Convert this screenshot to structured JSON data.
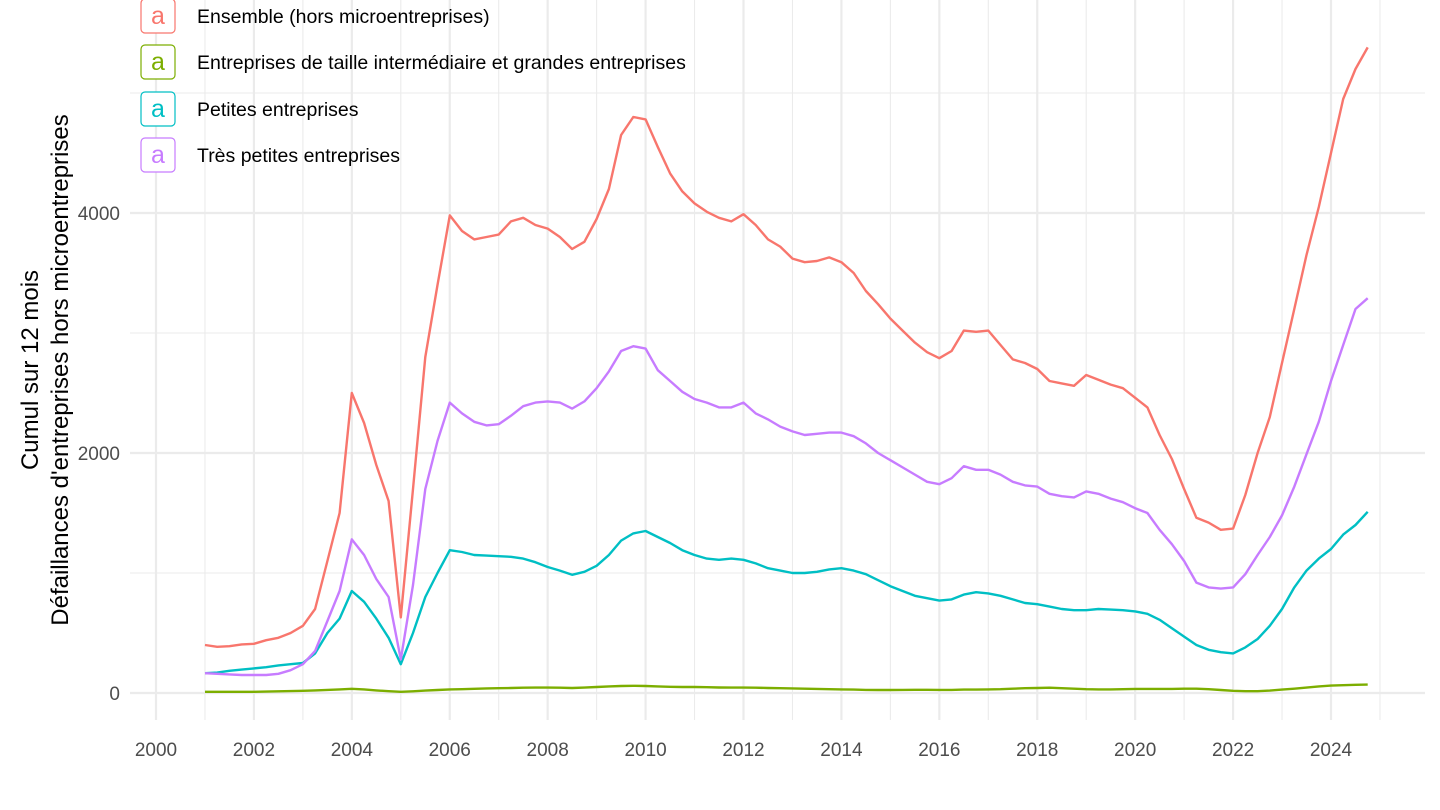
{
  "chart_data": {
    "type": "line",
    "title": "",
    "xlabel": "",
    "ylabel_lines": [
      "Cumul sur 12 mois",
      "Défaillances d'entreprises hors microentreprises"
    ],
    "xlim": [
      1999.8,
      2025.5
    ],
    "ylim": [
      -200,
      5600
    ],
    "x_ticks": [
      2000,
      2002,
      2004,
      2006,
      2008,
      2010,
      2012,
      2014,
      2016,
      2018,
      2020,
      2022,
      2024
    ],
    "x_tick_labels": [
      "2000",
      "2002",
      "2004",
      "2006",
      "2008",
      "2010",
      "2012",
      "2014",
      "2016",
      "2018",
      "2020",
      "2022",
      "2024"
    ],
    "y_ticks": [
      0,
      2000,
      4000
    ],
    "y_tick_labels": [
      "0",
      "2000",
      "4000"
    ],
    "y_minor_ticks": [
      1000,
      3000,
      5000
    ],
    "grid": true,
    "legend_position": "top-left",
    "legend_key_glyph": "a",
    "x": [
      2001.0,
      2001.25,
      2001.5,
      2001.75,
      2002.0,
      2002.25,
      2002.5,
      2002.75,
      2003.0,
      2003.25,
      2003.5,
      2003.75,
      2004.0,
      2004.25,
      2004.5,
      2004.75,
      2005.0,
      2005.25,
      2005.5,
      2005.75,
      2006.0,
      2006.25,
      2006.5,
      2006.75,
      2007.0,
      2007.25,
      2007.5,
      2007.75,
      2008.0,
      2008.25,
      2008.5,
      2008.75,
      2009.0,
      2009.25,
      2009.5,
      2009.75,
      2010.0,
      2010.25,
      2010.5,
      2010.75,
      2011.0,
      2011.25,
      2011.5,
      2011.75,
      2012.0,
      2012.25,
      2012.5,
      2012.75,
      2013.0,
      2013.25,
      2013.5,
      2013.75,
      2014.0,
      2014.25,
      2014.5,
      2014.75,
      2015.0,
      2015.25,
      2015.5,
      2015.75,
      2016.0,
      2016.25,
      2016.5,
      2016.75,
      2017.0,
      2017.25,
      2017.5,
      2017.75,
      2018.0,
      2018.25,
      2018.5,
      2018.75,
      2019.0,
      2019.25,
      2019.5,
      2019.75,
      2020.0,
      2020.25,
      2020.5,
      2020.75,
      2021.0,
      2021.25,
      2021.5,
      2021.75,
      2022.0,
      2022.25,
      2022.5,
      2022.75,
      2023.0,
      2023.25,
      2023.5,
      2023.75,
      2024.0,
      2024.25,
      2024.5,
      2024.75
    ],
    "series": [
      {
        "name": "Ensemble (hors microentreprises)",
        "color": "#F8766D",
        "values": [
          400,
          385,
          390,
          405,
          410,
          440,
          460,
          500,
          560,
          700,
          1100,
          1500,
          2500,
          2250,
          1900,
          1600,
          630,
          1700,
          2800,
          3400,
          3980,
          3850,
          3780,
          3800,
          3820,
          3930,
          3960,
          3900,
          3870,
          3800,
          3700,
          3760,
          3950,
          4200,
          4650,
          4800,
          4780,
          4550,
          4330,
          4180,
          4080,
          4010,
          3960,
          3930,
          3990,
          3900,
          3780,
          3720,
          3620,
          3590,
          3600,
          3630,
          3590,
          3500,
          3350,
          3240,
          3120,
          3020,
          2920,
          2840,
          2790,
          2850,
          3020,
          3010,
          3020,
          2900,
          2780,
          2750,
          2700,
          2600,
          2580,
          2560,
          2650,
          2610,
          2570,
          2540,
          2460,
          2380,
          2150,
          1950,
          1700,
          1460,
          1420,
          1360,
          1370,
          1650,
          2000,
          2300,
          2750,
          3200,
          3650,
          4050,
          4500,
          4950,
          5200,
          5380
        ]
      },
      {
        "name": "Entreprises de taille intermédiaire et grandes entreprises",
        "color": "#7CAE00",
        "values": [
          10,
          10,
          10,
          10,
          10,
          12,
          14,
          16,
          18,
          22,
          26,
          30,
          35,
          30,
          22,
          15,
          10,
          14,
          20,
          25,
          30,
          32,
          35,
          38,
          40,
          42,
          44,
          45,
          45,
          44,
          42,
          45,
          50,
          55,
          58,
          60,
          58,
          55,
          52,
          50,
          50,
          48,
          46,
          45,
          45,
          44,
          42,
          40,
          38,
          36,
          34,
          32,
          30,
          28,
          26,
          25,
          25,
          26,
          27,
          27,
          26,
          26,
          28,
          28,
          30,
          32,
          36,
          40,
          42,
          44,
          40,
          36,
          32,
          30,
          30,
          32,
          34,
          34,
          34,
          34,
          36,
          36,
          32,
          25,
          18,
          15,
          15,
          20,
          28,
          36,
          45,
          55,
          62,
          65,
          68,
          70
        ]
      },
      {
        "name": "Petites entreprises",
        "color": "#00BFC4",
        "values": [
          165,
          170,
          185,
          195,
          205,
          215,
          230,
          240,
          250,
          330,
          500,
          620,
          850,
          760,
          620,
          460,
          240,
          500,
          800,
          1000,
          1190,
          1175,
          1150,
          1145,
          1140,
          1135,
          1120,
          1090,
          1050,
          1020,
          985,
          1010,
          1060,
          1150,
          1270,
          1330,
          1350,
          1300,
          1250,
          1190,
          1150,
          1120,
          1110,
          1120,
          1110,
          1080,
          1040,
          1020,
          1000,
          1000,
          1010,
          1030,
          1040,
          1020,
          990,
          940,
          890,
          850,
          810,
          790,
          770,
          780,
          820,
          840,
          830,
          810,
          780,
          750,
          740,
          720,
          700,
          690,
          690,
          700,
          695,
          690,
          680,
          660,
          610,
          540,
          470,
          400,
          360,
          340,
          330,
          380,
          450,
          560,
          700,
          880,
          1020,
          1120,
          1200,
          1320,
          1400,
          1510
        ]
      },
      {
        "name": "Très petites entreprises",
        "color": "#C77CFF",
        "values": [
          165,
          160,
          155,
          150,
          150,
          150,
          160,
          190,
          240,
          350,
          600,
          850,
          1280,
          1150,
          950,
          800,
          280,
          900,
          1700,
          2100,
          2420,
          2330,
          2260,
          2230,
          2240,
          2310,
          2390,
          2420,
          2430,
          2420,
          2370,
          2430,
          2540,
          2680,
          2850,
          2890,
          2870,
          2690,
          2600,
          2510,
          2450,
          2420,
          2380,
          2380,
          2420,
          2330,
          2280,
          2220,
          2180,
          2150,
          2160,
          2170,
          2170,
          2140,
          2080,
          2000,
          1940,
          1880,
          1820,
          1760,
          1740,
          1790,
          1890,
          1860,
          1860,
          1820,
          1760,
          1730,
          1720,
          1660,
          1640,
          1630,
          1680,
          1660,
          1620,
          1590,
          1540,
          1500,
          1360,
          1240,
          1100,
          920,
          880,
          870,
          880,
          990,
          1150,
          1300,
          1480,
          1720,
          1990,
          2260,
          2600,
          2900,
          3200,
          3290
        ]
      }
    ]
  }
}
